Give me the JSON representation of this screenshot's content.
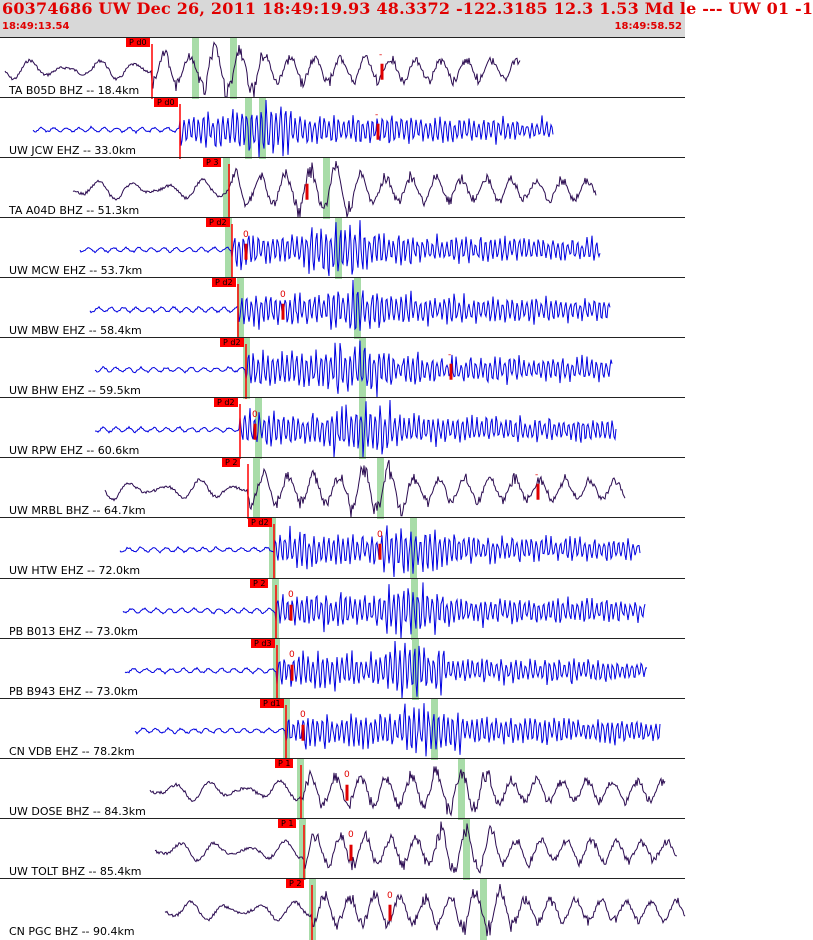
{
  "header": {
    "title": "60374686 UW Dec 26, 2011 18:49:19.93   48.3372 -122.3185 12.3 1.53 Md le --- UW 01   -1",
    "time_start": "18:49:13.54",
    "time_end": "18:49:58.52"
  },
  "colors": {
    "header_bg": "#d8d8d8",
    "text_red": "#e00000",
    "pick_red": "#ff0000",
    "trace_blue": "#0000e0",
    "trace_purple": "#2a0a50",
    "shade_green": "#a8dca8"
  },
  "traces": [
    {
      "label": "TA B05D BHZ -- 18.4km",
      "pick": "P d0",
      "color": "purple",
      "marker": "-"
    },
    {
      "label": "UW JCW EHZ -- 33.0km",
      "pick": "P d0",
      "color": "blue",
      "marker": "-"
    },
    {
      "label": "TA A04D BHZ -- 51.3km",
      "pick": "P 3",
      "color": "purple",
      "marker": ""
    },
    {
      "label": "UW MCW EHZ -- 53.7km",
      "pick": "P d2",
      "color": "blue",
      "marker": "0"
    },
    {
      "label": "UW MBW EHZ -- 58.4km",
      "pick": "P d2",
      "color": "blue",
      "marker": "0"
    },
    {
      "label": "UW BHW EHZ -- 59.5km",
      "pick": "P d2",
      "color": "blue",
      "marker": "-"
    },
    {
      "label": "UW RPW EHZ -- 60.6km",
      "pick": "P d2",
      "color": "blue",
      "marker": "0"
    },
    {
      "label": "UW MRBL BHZ -- 64.7km",
      "pick": "P 2",
      "color": "purple",
      "marker": "-"
    },
    {
      "label": "UW HTW EHZ -- 72.0km",
      "pick": "P d2",
      "color": "blue",
      "marker": "0"
    },
    {
      "label": "PB B013 EHZ -- 73.0km",
      "pick": "P 2",
      "color": "blue",
      "marker": "0"
    },
    {
      "label": "PB B943 EHZ -- 73.0km",
      "pick": "P d3",
      "color": "blue",
      "marker": "0"
    },
    {
      "label": "CN VDB EHZ -- 78.2km",
      "pick": "P d1",
      "color": "blue",
      "marker": "0"
    },
    {
      "label": "UW DOSE BHZ -- 84.3km",
      "pick": "P 1",
      "color": "purple",
      "marker": "0"
    },
    {
      "label": "UW TOLT BHZ -- 85.4km",
      "pick": "P 1",
      "color": "purple",
      "marker": "0"
    },
    {
      "label": "CN PGC BHZ -- 90.4km",
      "pick": "P 2",
      "color": "purple",
      "marker": "0"
    }
  ]
}
